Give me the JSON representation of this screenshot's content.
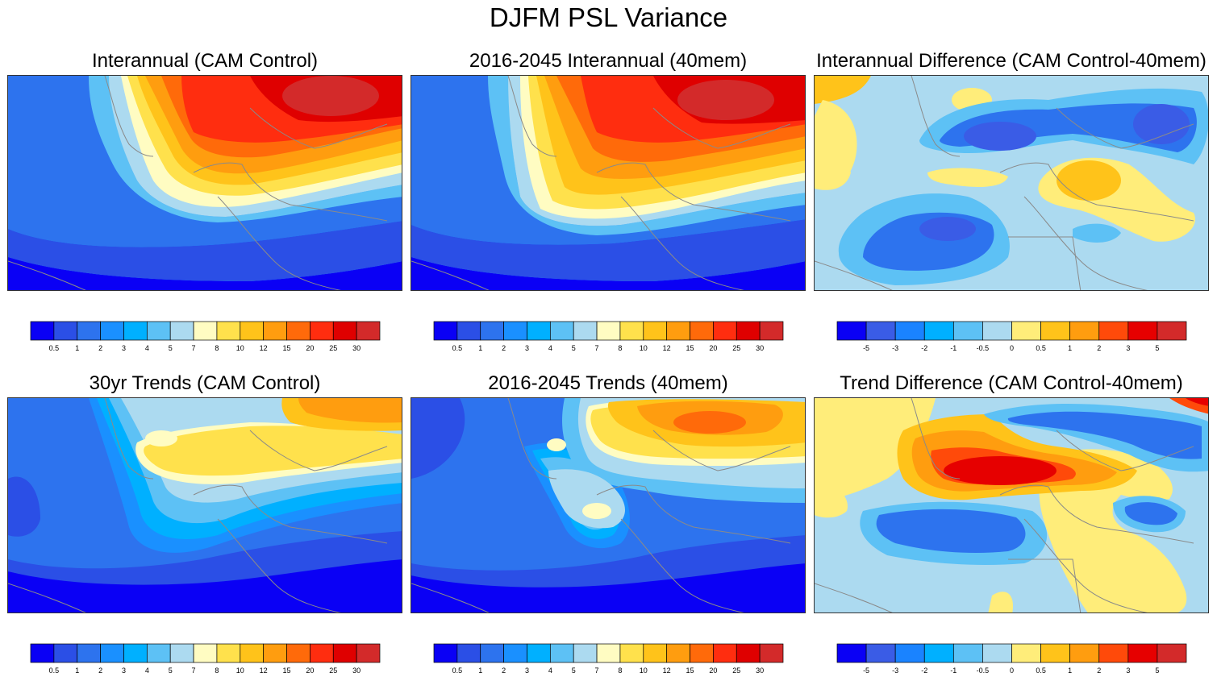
{
  "figure_title": "DJFM PSL Variance",
  "chart_data": [
    {
      "type": "heatmap",
      "title": "Interannual (CAM Control)",
      "colorbar_labels": [
        "0.5",
        "1",
        "2",
        "3",
        "4",
        "5",
        "7",
        "8",
        "10",
        "12",
        "15",
        "20",
        "25",
        "30"
      ],
      "colorbar_colors": [
        "#0a00f5",
        "#2b4fe6",
        "#2d73ee",
        "#1a90ff",
        "#00b0ff",
        "#5dc1f5",
        "#acdaf0",
        "#fffcc2",
        "#ffe14c",
        "#ffc31a",
        "#ff9d0f",
        "#ff6a0a",
        "#ff2d0f",
        "#df0000",
        "#d32a2a"
      ]
    },
    {
      "type": "heatmap",
      "title": "2016-2045 Interannual (40mem)",
      "colorbar_labels": [
        "0.5",
        "1",
        "2",
        "3",
        "4",
        "5",
        "7",
        "8",
        "10",
        "12",
        "15",
        "20",
        "25",
        "30"
      ],
      "colorbar_colors": [
        "#0a00f5",
        "#2b4fe6",
        "#2d73ee",
        "#1a90ff",
        "#00b0ff",
        "#5dc1f5",
        "#acdaf0",
        "#fffcc2",
        "#ffe14c",
        "#ffc31a",
        "#ff9d0f",
        "#ff6a0a",
        "#ff2d0f",
        "#df0000",
        "#d32a2a"
      ]
    },
    {
      "type": "heatmap",
      "title": "Interannual Difference (CAM Control-40mem)",
      "colorbar_labels": [
        "-5",
        "-3",
        "-2",
        "-1",
        "-0.5",
        "0",
        "0.5",
        "1",
        "2",
        "3",
        "5"
      ],
      "colorbar_colors": [
        "#0a00f5",
        "#3a5ce6",
        "#1a83ff",
        "#00b0ff",
        "#5dc1f5",
        "#acdaf0",
        "#ffed7a",
        "#ffc31a",
        "#ff9d0f",
        "#ff4a0a",
        "#e60000",
        "#d32a2a"
      ]
    },
    {
      "type": "heatmap",
      "title": "30yr Trends (CAM Control)",
      "colorbar_labels": [
        "0.5",
        "1",
        "2",
        "3",
        "4",
        "5",
        "7",
        "8",
        "10",
        "12",
        "15",
        "20",
        "25",
        "30"
      ],
      "colorbar_colors": [
        "#0a00f5",
        "#2b4fe6",
        "#2d73ee",
        "#1a90ff",
        "#00b0ff",
        "#5dc1f5",
        "#acdaf0",
        "#fffcc2",
        "#ffe14c",
        "#ffc31a",
        "#ff9d0f",
        "#ff6a0a",
        "#ff2d0f",
        "#df0000",
        "#d32a2a"
      ]
    },
    {
      "type": "heatmap",
      "title": "2016-2045 Trends (40mem)",
      "colorbar_labels": [
        "0.5",
        "1",
        "2",
        "3",
        "4",
        "5",
        "7",
        "8",
        "10",
        "12",
        "15",
        "20",
        "25",
        "30"
      ],
      "colorbar_colors": [
        "#0a00f5",
        "#2b4fe6",
        "#2d73ee",
        "#1a90ff",
        "#00b0ff",
        "#5dc1f5",
        "#acdaf0",
        "#fffcc2",
        "#ffe14c",
        "#ffc31a",
        "#ff9d0f",
        "#ff6a0a",
        "#ff2d0f",
        "#df0000",
        "#d32a2a"
      ]
    },
    {
      "type": "heatmap",
      "title": "Trend Difference (CAM Control-40mem)",
      "colorbar_labels": [
        "-5",
        "-3",
        "-2",
        "-1",
        "-0.5",
        "0",
        "0.5",
        "1",
        "2",
        "3",
        "5"
      ],
      "colorbar_colors": [
        "#0a00f5",
        "#3a5ce6",
        "#1a83ff",
        "#00b0ff",
        "#5dc1f5",
        "#acdaf0",
        "#ffed7a",
        "#ffc31a",
        "#ff9d0f",
        "#ff4a0a",
        "#e60000",
        "#d32a2a"
      ]
    }
  ]
}
